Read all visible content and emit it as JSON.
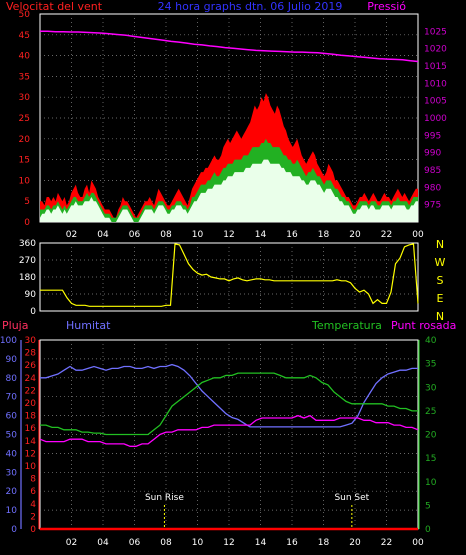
{
  "header": {
    "left_title": "Velocitat del vent",
    "center_title": "24 hora graphs dtn. 06 Julio 2019",
    "right_title": "Pressió"
  },
  "colors": {
    "wind_red": "#ff0000",
    "wind_green": "#22b022",
    "wind_white": "#eaffea",
    "pressure": "#ff00ff",
    "direction": "#ffff00",
    "axis_frame": "#ffffff",
    "grid": "#8a8a8a",
    "red_axis": "#ff2020",
    "humidity": "#7070ff",
    "temperature": "#22c022",
    "dewpoint": "#ff00ff",
    "rain": "#ff0000",
    "right_axis_pressure": "#cc00cc",
    "right_axis_temp": "#22aa22",
    "rain_label": "#ff3060",
    "dewpoint_label": "#ff00ff"
  },
  "x_ticks": [
    "02",
    "04",
    "06",
    "08",
    "10",
    "12",
    "14",
    "16",
    "18",
    "20",
    "22",
    "00"
  ],
  "chart_data": [
    {
      "type": "area",
      "series": [
        {
          "values": [
            5,
            5,
            4,
            6,
            6,
            5,
            6,
            5,
            7,
            6,
            5,
            6,
            4,
            5,
            7,
            8,
            9,
            7,
            6,
            6,
            8,
            9,
            7,
            10,
            9,
            8,
            6,
            5,
            4,
            3,
            3,
            3,
            2,
            1,
            1,
            3,
            4,
            6,
            5,
            5,
            4,
            3,
            2,
            1,
            2,
            3,
            4,
            5,
            5,
            6,
            5,
            4,
            6,
            8,
            7,
            6,
            5,
            4,
            4,
            5,
            6,
            7,
            8,
            7,
            6,
            5,
            4,
            6,
            8,
            9,
            10,
            11,
            12,
            12,
            13,
            13,
            14,
            15,
            16,
            15,
            15,
            16,
            18,
            19,
            20,
            19,
            20,
            21,
            22,
            21,
            20,
            21,
            22,
            23,
            24,
            26,
            28,
            27,
            28,
            30,
            29,
            31,
            30,
            28,
            27,
            26,
            28,
            27,
            25,
            23,
            22,
            20,
            19,
            18,
            19,
            20,
            18,
            16,
            15,
            14,
            15,
            16,
            17,
            16,
            14,
            13,
            12,
            11,
            12,
            14,
            13,
            12,
            10,
            10,
            9,
            8,
            7,
            6,
            6,
            5,
            4,
            4,
            5,
            6,
            6,
            7,
            6,
            5,
            6,
            7,
            6,
            5,
            5,
            6,
            7,
            6,
            6,
            5,
            6,
            7,
            8,
            7,
            6,
            7,
            6,
            5,
            6,
            7,
            8,
            8
          ]
        },
        {
          "values": [
            3,
            3,
            3,
            4,
            4,
            3,
            4,
            4,
            5,
            4,
            3,
            4,
            3,
            4,
            5,
            6,
            6,
            5,
            5,
            5,
            6,
            7,
            6,
            7,
            7,
            6,
            5,
            4,
            3,
            2,
            2,
            2,
            1,
            1,
            1,
            2,
            3,
            4,
            4,
            4,
            3,
            2,
            1,
            1,
            1,
            2,
            3,
            4,
            4,
            4,
            4,
            3,
            4,
            5,
            5,
            5,
            4,
            3,
            3,
            4,
            4,
            5,
            5,
            5,
            4,
            4,
            3,
            4,
            6,
            6,
            7,
            8,
            9,
            9,
            9,
            10,
            10,
            11,
            12,
            11,
            11,
            12,
            13,
            13,
            14,
            14,
            14,
            15,
            15,
            15,
            15,
            16,
            16,
            16,
            17,
            18,
            18,
            18,
            18,
            19,
            19,
            20,
            19,
            19,
            18,
            18,
            18,
            18,
            17,
            16,
            16,
            15,
            15,
            14,
            14,
            15,
            14,
            13,
            12,
            11,
            12,
            12,
            13,
            12,
            11,
            11,
            10,
            9,
            10,
            10,
            10,
            9,
            8,
            8,
            7,
            6,
            6,
            5,
            5,
            4,
            3,
            3,
            4,
            5,
            5,
            5,
            5,
            4,
            5,
            5,
            5,
            4,
            4,
            5,
            5,
            5,
            5,
            4,
            5,
            5,
            6,
            5,
            5,
            5,
            5,
            4,
            5,
            6,
            6,
            6
          ]
        },
        {
          "values": [
            1,
            2,
            2,
            3,
            3,
            2,
            3,
            3,
            4,
            3,
            2,
            3,
            2,
            3,
            4,
            4,
            5,
            4,
            4,
            4,
            5,
            5,
            5,
            6,
            5,
            5,
            4,
            3,
            2,
            1,
            1,
            1,
            0,
            0,
            0,
            1,
            2,
            3,
            3,
            3,
            2,
            1,
            0,
            0,
            0,
            1,
            2,
            3,
            3,
            3,
            3,
            2,
            3,
            4,
            4,
            4,
            3,
            2,
            2,
            3,
            3,
            4,
            4,
            4,
            3,
            3,
            2,
            3,
            4,
            5,
            5,
            6,
            7,
            7,
            7,
            8,
            8,
            8,
            9,
            9,
            9,
            9,
            10,
            10,
            11,
            11,
            11,
            12,
            12,
            12,
            12,
            12,
            13,
            13,
            13,
            14,
            14,
            14,
            14,
            14,
            15,
            15,
            15,
            14,
            14,
            14,
            14,
            14,
            13,
            13,
            12,
            12,
            12,
            11,
            11,
            11,
            11,
            10,
            10,
            9,
            9,
            10,
            10,
            10,
            9,
            9,
            8,
            7,
            8,
            8,
            8,
            7,
            6,
            6,
            5,
            5,
            4,
            4,
            4,
            3,
            2,
            2,
            3,
            3,
            4,
            4,
            4,
            3,
            4,
            4,
            3,
            3,
            3,
            4,
            4,
            4,
            4,
            3,
            4,
            4,
            4,
            4,
            4,
            4,
            3,
            3,
            4,
            4,
            5,
            5
          ]
        }
      ],
      "x_range": [
        0,
        24
      ],
      "ylim": [
        0,
        50
      ],
      "y_ticks": [
        0,
        5,
        10,
        15,
        20,
        25,
        30,
        35,
        40,
        45,
        50
      ]
    },
    {
      "type": "line",
      "values": [
        1025,
        1025,
        1024.9,
        1024.9,
        1024.8,
        1024.8,
        1024.7,
        1024.6,
        1024.5,
        1024.3,
        1024.1,
        1023.9,
        1023.6,
        1023.3,
        1023.0,
        1022.7,
        1022.4,
        1022.1,
        1021.9,
        1021.6,
        1021.3,
        1021.1,
        1020.8,
        1020.6,
        1020.3,
        1020.1,
        1019.9,
        1019.7,
        1019.5,
        1019.4,
        1019.3,
        1019.2,
        1019.1,
        1019.0,
        1019.0,
        1018.9,
        1018.8,
        1018.6,
        1018.4,
        1018.1,
        1017.9,
        1017.7,
        1017.5,
        1017.3,
        1017.1,
        1017.0,
        1016.9,
        1016.8,
        1016.5,
        1016.3
      ],
      "x_range": [
        0,
        24
      ],
      "ylim": [
        970,
        1030
      ],
      "y_ticks": [
        975,
        980,
        985,
        990,
        995,
        1000,
        1005,
        1010,
        1015,
        1020,
        1025
      ]
    },
    {
      "type": "line",
      "values": [
        110,
        110,
        110,
        110,
        110,
        110,
        70,
        40,
        30,
        30,
        30,
        25,
        25,
        25,
        25,
        25,
        25,
        25,
        25,
        25,
        25,
        25,
        25,
        25,
        25,
        25,
        25,
        25,
        30,
        30,
        355,
        350,
        300,
        250,
        220,
        200,
        190,
        195,
        180,
        175,
        170,
        170,
        160,
        170,
        175,
        165,
        160,
        165,
        170,
        170,
        165,
        165,
        160,
        160,
        160,
        160,
        160,
        160,
        160,
        160,
        160,
        160,
        160,
        160,
        160,
        160,
        165,
        160,
        160,
        150,
        120,
        100,
        110,
        90,
        40,
        60,
        40,
        40,
        100,
        250,
        280,
        340,
        350,
        355,
        40
      ],
      "x_range": [
        0,
        24
      ],
      "ylim": [
        0,
        360
      ],
      "y_ticks": [
        0,
        90,
        180,
        270,
        360
      ],
      "right_labels": [
        "N",
        "W",
        "S",
        "E",
        "N"
      ]
    },
    {
      "type": "line",
      "axis_labels": {
        "rain": "Pluja",
        "humidity": "Humitat",
        "temperature": "Temperatura",
        "dewpoint": "Punt rosada"
      },
      "series": [
        {
          "values": [
            80,
            80,
            81,
            82,
            84,
            86,
            84,
            84,
            85,
            86,
            85,
            84,
            85,
            85,
            86,
            86,
            85,
            85,
            86,
            85,
            86,
            86,
            87,
            86,
            84,
            81,
            77,
            73,
            70,
            67,
            64,
            61,
            59,
            58,
            56,
            54,
            54,
            54,
            54,
            54,
            54,
            54,
            54,
            54,
            54,
            54,
            54,
            54,
            54,
            54,
            54,
            55,
            56,
            60,
            67,
            72,
            77,
            80,
            82,
            83,
            84,
            84,
            85,
            85
          ]
        },
        {
          "values": [
            22,
            22,
            21.5,
            21.5,
            21,
            21,
            21,
            20.5,
            20.5,
            20.3,
            20.3,
            20,
            20,
            20,
            20,
            20,
            20,
            20,
            20,
            21,
            22,
            24,
            26,
            27,
            28,
            29,
            30,
            31,
            31.5,
            32,
            32,
            32.5,
            32.5,
            33,
            33,
            33,
            33,
            33,
            33,
            33,
            32.5,
            32,
            32,
            32,
            32,
            32.5,
            32,
            31,
            30.5,
            29,
            28,
            27,
            26.5,
            26.5,
            26.5,
            26.5,
            26.5,
            26.5,
            26,
            26,
            25.5,
            25.5,
            25,
            25
          ]
        },
        {
          "values": [
            19,
            18.5,
            18.5,
            18.5,
            18.5,
            19,
            19,
            19,
            18.5,
            18.5,
            18.5,
            18,
            18,
            18,
            18,
            17.5,
            17.5,
            18,
            18,
            19,
            20,
            20.5,
            20.5,
            21,
            21,
            21,
            21,
            21.5,
            21.5,
            22,
            22,
            22,
            22,
            22,
            22,
            22,
            23,
            23.5,
            23.5,
            23.5,
            23.5,
            23.5,
            23.5,
            24,
            23.5,
            24,
            23,
            23,
            23,
            23,
            23.5,
            23.5,
            23.5,
            23.5,
            23,
            23,
            22.5,
            22.5,
            22.5,
            22,
            22,
            21.5,
            21.5,
            21
          ]
        },
        {
          "values": [
            0,
            0,
            0,
            0,
            0,
            0,
            0,
            0,
            0,
            0,
            0,
            0,
            0,
            0,
            0,
            0,
            0,
            0,
            0,
            0,
            0,
            0,
            0,
            0,
            0,
            0,
            0,
            0,
            0,
            0,
            0,
            0,
            0,
            0,
            0,
            0,
            0,
            0,
            0,
            0,
            0,
            0,
            0,
            0,
            0,
            0,
            0,
            0,
            0,
            0,
            0,
            0,
            0,
            0,
            0,
            0,
            0,
            0,
            0,
            0,
            0,
            0,
            0,
            0
          ]
        }
      ],
      "x_range": [
        0,
        24
      ],
      "humidity_ylim": [
        0,
        100
      ],
      "humidity_ticks": [
        0,
        10,
        20,
        30,
        40,
        50,
        60,
        70,
        80,
        90,
        100
      ],
      "rain_ylim": [
        0,
        30
      ],
      "rain_ticks": [
        0,
        2,
        4,
        6,
        8,
        10,
        12,
        14,
        16,
        18,
        20,
        22,
        24,
        26,
        28,
        30
      ],
      "temp_ylim": [
        0,
        40
      ],
      "temp_ticks": [
        0,
        5,
        10,
        15,
        20,
        25,
        30,
        35,
        40
      ],
      "annotations": [
        {
          "label": "Sun Rise",
          "x": 7.9
        },
        {
          "label": "Sun Set",
          "x": 19.8
        }
      ]
    }
  ]
}
